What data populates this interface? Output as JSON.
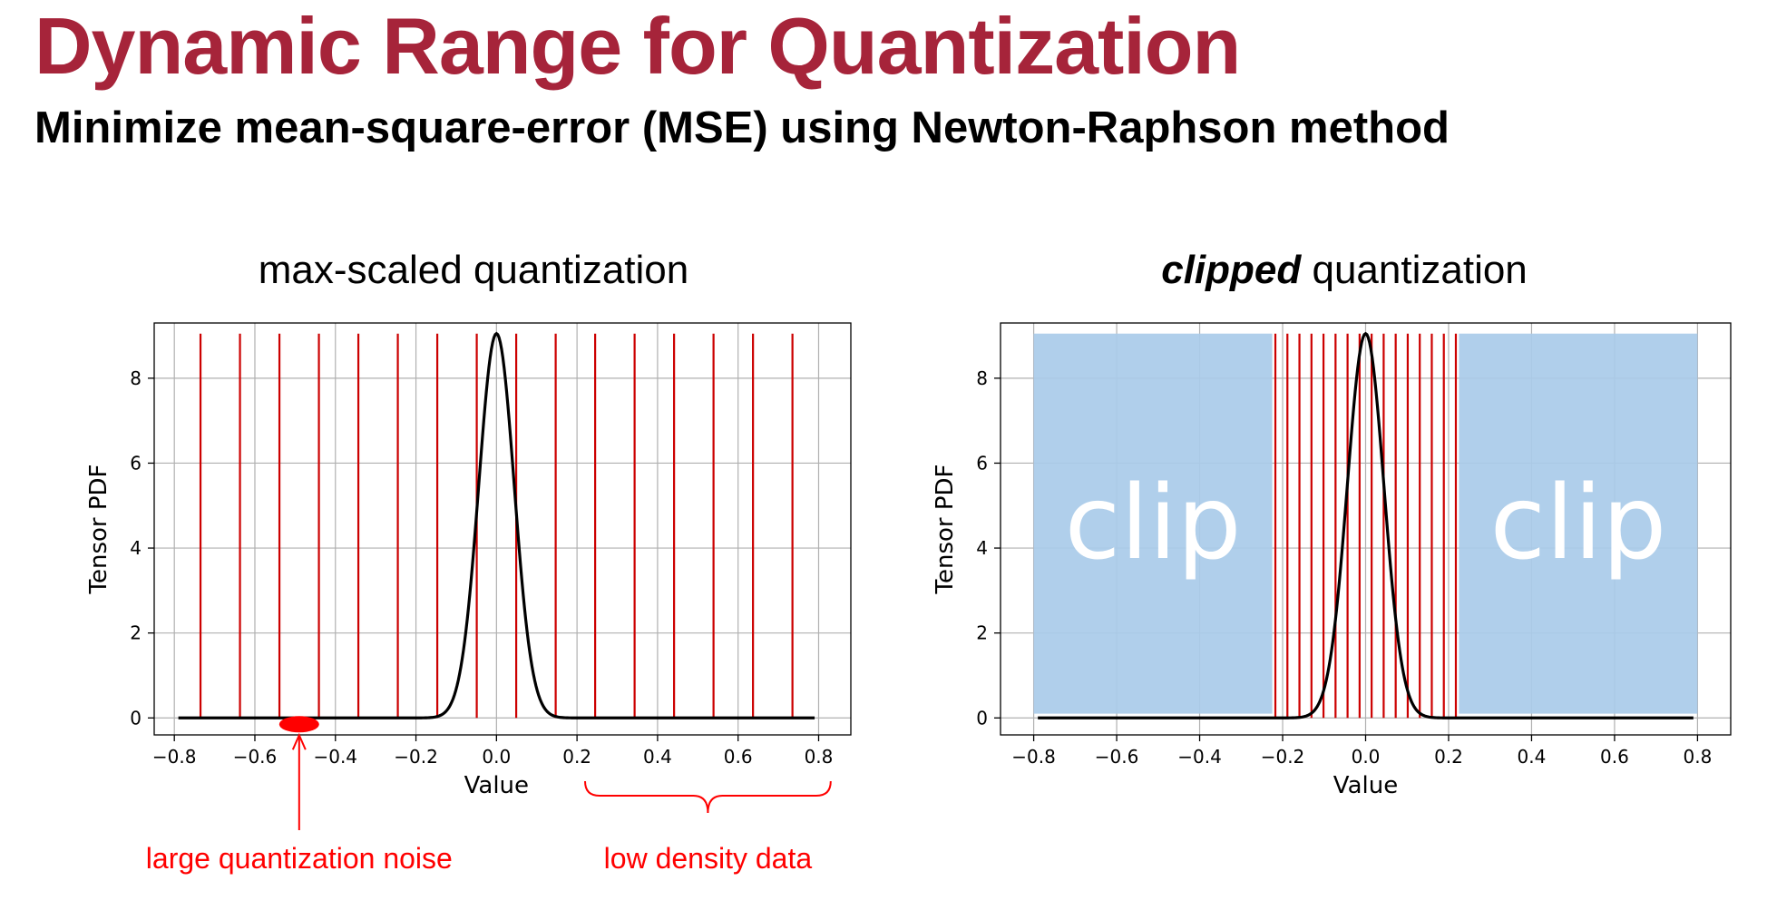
{
  "slide": {
    "title": "Dynamic Range for Quantization",
    "subtitle": "Minimize mean-square-error (MSE) using Newton-Raphson method"
  },
  "colors": {
    "title": "#a6243a",
    "quant_lines": "#cc0000",
    "curve": "#000000",
    "clip_region": "#a9cbe9",
    "annotation": "#ff0000"
  },
  "chart_data": [
    {
      "type": "line",
      "title": "max-scaled quantization",
      "xlabel": "Value",
      "ylabel": "Tensor PDF",
      "xlim": [
        -0.85,
        0.88
      ],
      "ylim": [
        -0.4,
        9.3
      ],
      "xticks": [
        -0.8,
        -0.6,
        -0.4,
        -0.2,
        0.0,
        0.2,
        0.4,
        0.6,
        0.8
      ],
      "xtick_labels": [
        "−0.8",
        "−0.6",
        "−0.4",
        "−0.2",
        "0.0",
        "0.2",
        "0.4",
        "0.6",
        "0.8"
      ],
      "yticks": [
        0,
        2,
        4,
        6,
        8
      ],
      "ytick_labels": [
        "0",
        "2",
        "4",
        "6",
        "8"
      ],
      "grid": true,
      "curve": {
        "name": "",
        "kind": "gaussian",
        "mean": 0.0,
        "std": 0.044,
        "peak": 9.05,
        "x_range": [
          -0.79,
          0.79
        ]
      },
      "quantization_levels": [
        -0.735,
        -0.637,
        -0.539,
        -0.441,
        -0.343,
        -0.245,
        -0.147,
        -0.049,
        0.049,
        0.147,
        0.245,
        0.343,
        0.441,
        0.539,
        0.637,
        0.735
      ],
      "quantization_level_height": 9.05,
      "clip_regions": [],
      "annotations": [
        {
          "text": "large quantization noise",
          "marker_x": -0.49,
          "marker_y": 0.0
        },
        {
          "text": "low density data",
          "brace_x": [
            0.22,
            0.83
          ]
        }
      ]
    },
    {
      "type": "line",
      "title_emphasis": "clipped",
      "title": "quantization",
      "xlabel": "Value",
      "ylabel": "Tensor PDF",
      "xlim": [
        -0.88,
        0.88
      ],
      "ylim": [
        -0.4,
        9.3
      ],
      "xticks": [
        -0.8,
        -0.6,
        -0.4,
        -0.2,
        0.0,
        0.2,
        0.4,
        0.6,
        0.8
      ],
      "xtick_labels": [
        "−0.8",
        "−0.6",
        "−0.4",
        "−0.2",
        "0.0",
        "0.2",
        "0.4",
        "0.6",
        "0.8"
      ],
      "yticks": [
        0,
        2,
        4,
        6,
        8
      ],
      "ytick_labels": [
        "0",
        "2",
        "4",
        "6",
        "8"
      ],
      "grid": true,
      "curve": {
        "name": "",
        "kind": "gaussian",
        "mean": 0.0,
        "std": 0.044,
        "peak": 9.05,
        "x_range": [
          -0.79,
          0.79
        ]
      },
      "quantization_levels": [
        -0.2175,
        -0.1885,
        -0.1595,
        -0.1305,
        -0.1015,
        -0.0725,
        -0.0435,
        -0.0145,
        0.0145,
        0.0435,
        0.0725,
        0.1015,
        0.1305,
        0.1595,
        0.1885,
        0.2175
      ],
      "quantization_level_height": 9.05,
      "clip_regions": [
        {
          "x0": -0.8,
          "x1": -0.225,
          "y0": 0.1,
          "y1": 9.05,
          "label": "clip"
        },
        {
          "x0": 0.225,
          "x1": 0.8,
          "y0": 0.1,
          "y1": 9.05,
          "label": "clip"
        }
      ],
      "annotations": []
    }
  ]
}
